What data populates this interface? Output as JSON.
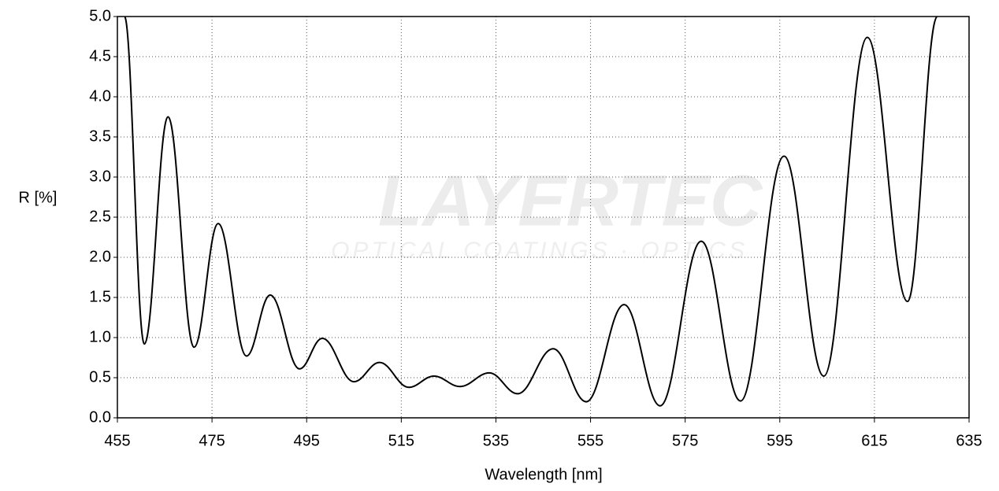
{
  "chart_data": {
    "type": "line",
    "x_label": "Wavelength [nm]",
    "y_label": "R [%]",
    "watermark": "LAYERTEC",
    "watermark_sub": "OPTICAL COATINGS · OPTICS",
    "xlim": [
      455,
      635
    ],
    "ylim": [
      0,
      5
    ],
    "xticks": [
      455,
      475,
      495,
      515,
      535,
      555,
      575,
      595,
      615,
      635
    ],
    "yticks": [
      {
        "value": 0,
        "label": "0.0"
      },
      0.5,
      {
        "value": 1,
        "label": "1.0"
      },
      1.5,
      {
        "value": 2,
        "label": "2.0"
      },
      2.5,
      {
        "value": 3,
        "label": "3.0"
      },
      3.5,
      {
        "value": 4,
        "label": "4.0"
      },
      4.5,
      {
        "value": 5,
        "label": "5.0"
      }
    ],
    "grid": true,
    "series": [
      {
        "color": "#000000",
        "x": [
          456.5,
          460.7,
          465.7,
          471.2,
          476.3,
          482.3,
          487.3,
          493.5,
          498.3,
          505.0,
          510.4,
          516.6,
          521.9,
          527.4,
          533.6,
          539.6,
          547.1,
          554.1,
          562.1,
          569.7,
          578.4,
          586.7,
          595.9,
          604.3,
          613.5,
          622.0,
          628.3
        ],
        "values": [
          5.0,
          0.92,
          3.75,
          0.88,
          2.42,
          0.77,
          1.53,
          0.61,
          0.99,
          0.45,
          0.69,
          0.38,
          0.52,
          0.39,
          0.56,
          0.3,
          0.86,
          0.2,
          1.41,
          0.15,
          2.2,
          0.21,
          3.26,
          0.52,
          4.74,
          1.45,
          5.0
        ]
      }
    ]
  }
}
